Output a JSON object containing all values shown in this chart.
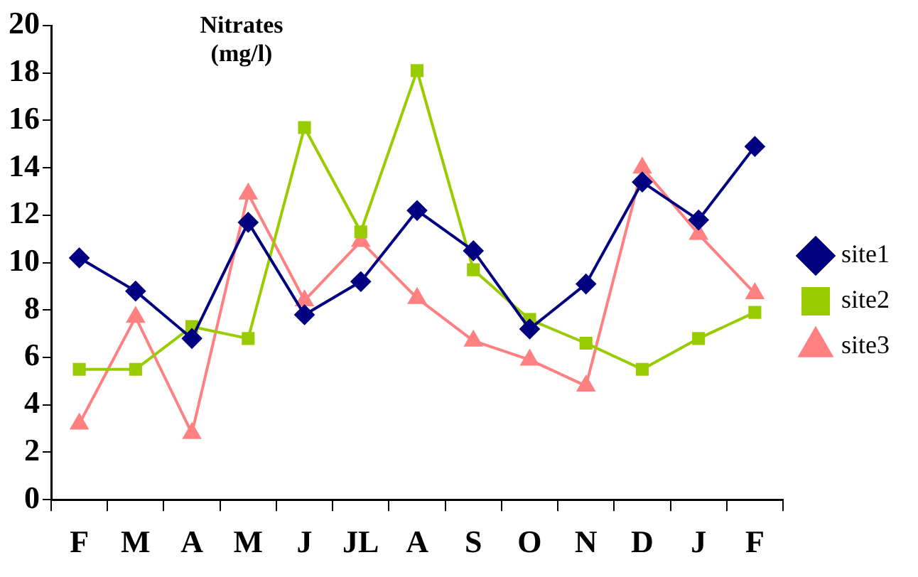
{
  "chart_data": {
    "type": "line",
    "title": "Nitrates\n(mg/l)",
    "categories": [
      "F",
      "M",
      "A",
      "M",
      "J",
      "JL",
      "A",
      "S",
      "O",
      "N",
      "D",
      "J",
      "F"
    ],
    "series": [
      {
        "name": "site1",
        "color": "#000080",
        "marker": "diamond",
        "values": [
          10.2,
          8.8,
          6.8,
          11.7,
          7.8,
          9.2,
          12.2,
          10.5,
          7.2,
          9.1,
          13.4,
          11.8,
          14.9
        ]
      },
      {
        "name": "site2",
        "color": "#99cc00",
        "marker": "square",
        "values": [
          5.5,
          5.5,
          7.3,
          6.8,
          15.7,
          11.3,
          18.1,
          9.7,
          7.6,
          6.6,
          5.5,
          6.8,
          7.9
        ]
      },
      {
        "name": "site3",
        "color": "#ff8080",
        "marker": "triangle",
        "values": [
          3.2,
          7.7,
          2.8,
          12.9,
          8.4,
          10.9,
          8.5,
          6.7,
          5.9,
          4.8,
          14.0,
          11.2,
          8.7
        ]
      }
    ],
    "ylim": [
      0,
      20
    ],
    "yticks": [
      0,
      2,
      4,
      6,
      8,
      10,
      12,
      14,
      16,
      18,
      20
    ],
    "grid": false,
    "legend": "right",
    "line_style": "solid"
  }
}
